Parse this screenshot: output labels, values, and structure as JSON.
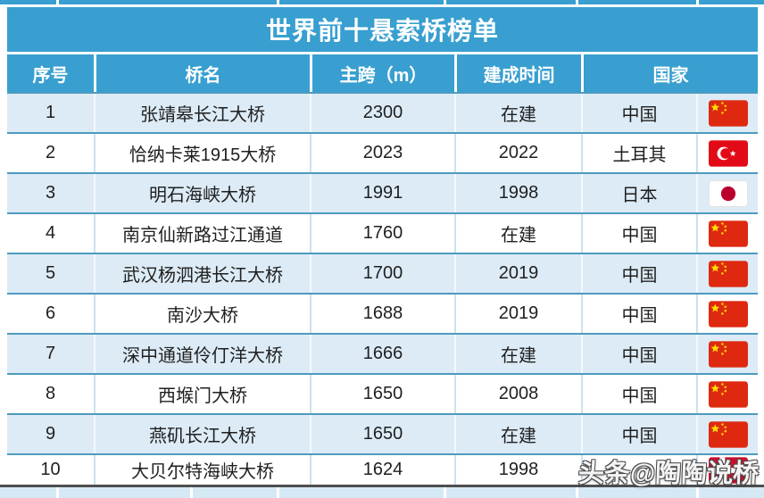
{
  "chart_data": {
    "type": "table",
    "title": "世界前十悬索桥榜单",
    "columns": [
      "序号",
      "桥名",
      "主跨（m）",
      "建成时间",
      "国家"
    ],
    "rows": [
      {
        "no": "1",
        "name": "张靖皋长江大桥",
        "span": "2300",
        "built": "在建",
        "country": "中国",
        "flag": "china"
      },
      {
        "no": "2",
        "name": "恰纳卡莱1915大桥",
        "span": "2023",
        "built": "2022",
        "country": "土耳其",
        "flag": "turkey"
      },
      {
        "no": "3",
        "name": "明石海峡大桥",
        "span": "1991",
        "built": "1998",
        "country": "日本",
        "flag": "japan"
      },
      {
        "no": "4",
        "name": "南京仙新路过江通道",
        "span": "1760",
        "built": "在建",
        "country": "中国",
        "flag": "china"
      },
      {
        "no": "5",
        "name": "武汉杨泗港长江大桥",
        "span": "1700",
        "built": "2019",
        "country": "中国",
        "flag": "china"
      },
      {
        "no": "6",
        "name": "南沙大桥",
        "span": "1688",
        "built": "2019",
        "country": "中国",
        "flag": "china"
      },
      {
        "no": "7",
        "name": "深中通道伶仃洋大桥",
        "span": "1666",
        "built": "在建",
        "country": "中国",
        "flag": "china"
      },
      {
        "no": "8",
        "name": "西堠门大桥",
        "span": "1650",
        "built": "2008",
        "country": "中国",
        "flag": "china"
      },
      {
        "no": "9",
        "name": "燕矶长江大桥",
        "span": "1650",
        "built": "在建",
        "country": "中国",
        "flag": "china"
      },
      {
        "no": "10",
        "name": "大贝尔特海峡大桥",
        "span": "1624",
        "built": "1998",
        "country": "",
        "flag": "denmark"
      }
    ]
  },
  "watermark": {
    "text": "头条@陶陶说桥"
  },
  "colors": {
    "header_blue": "#389FD0",
    "row_alt_blue": "#DCEBF6",
    "row_white": "#FFFFFF",
    "row_border_blue": "#4E9BBE",
    "flag_china_red": "#DE2910",
    "flag_china_yellow": "#FFDE00",
    "flag_turkey_red": "#E30A17",
    "flag_japan_red": "#BC002D",
    "flag_denmark_red": "#C8102E"
  }
}
